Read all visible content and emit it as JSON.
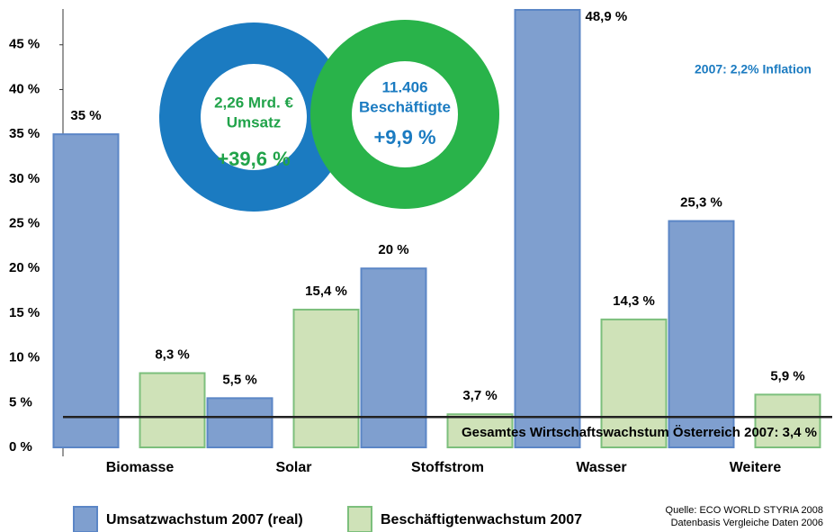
{
  "chart_data": {
    "type": "bar",
    "categories": [
      "Biomasse",
      "Solar",
      "Stoffstrom",
      "Wasser",
      "Weitere"
    ],
    "series": [
      {
        "name": "Umsatzwachstum 2007 (real)",
        "color": "#7f9fcf",
        "border": "#5b86c6",
        "values": [
          35,
          5.5,
          20,
          48.9,
          25.3
        ],
        "value_labels": [
          "35 %",
          "5,5 %",
          "20 %",
          "48,9 %",
          "25,3 %"
        ]
      },
      {
        "name": "Beschäftigtenwachstum 2007",
        "color": "#cfe2b8",
        "border": "#7cbf7c",
        "values": [
          8.3,
          15.4,
          3.7,
          14.3,
          5.9
        ],
        "value_labels": [
          "8,3 %",
          "15,4 %",
          "3,7 %",
          "14,3 %",
          "5,9 %"
        ]
      }
    ],
    "ylim": [
      0,
      49
    ],
    "yticks": [
      {
        "value": 0,
        "label": "0 %"
      },
      {
        "value": 5,
        "label": "5 %"
      },
      {
        "value": 10,
        "label": "10 %"
      },
      {
        "value": 15,
        "label": "15 %"
      },
      {
        "value": 20,
        "label": "20 %"
      },
      {
        "value": 25,
        "label": "25 %"
      },
      {
        "value": 30,
        "label": "30 %"
      },
      {
        "value": 35,
        "label": "35 %"
      },
      {
        "value": 40,
        "label": "40 %"
      },
      {
        "value": 45,
        "label": "45 %"
      }
    ],
    "reference_line": {
      "value": 3.4,
      "label": "Gesamtes Wirtschaftswachstum Österreich 2007: 3,4 %"
    },
    "annotations": {
      "revenue": "2,26 Mrd. €",
      "revenue_word": "Umsatz",
      "revenue_growth": "+39,6 %",
      "employees": "11.406",
      "employees_word": "Beschäftigte",
      "employees_growth": "+9,9 %",
      "inflation": "2007: 2,2% Inflation"
    },
    "source": [
      "Quelle: ECO WORLD STYRIA 2008",
      "Datenbasis Vergleiche Daten 2006"
    ]
  }
}
